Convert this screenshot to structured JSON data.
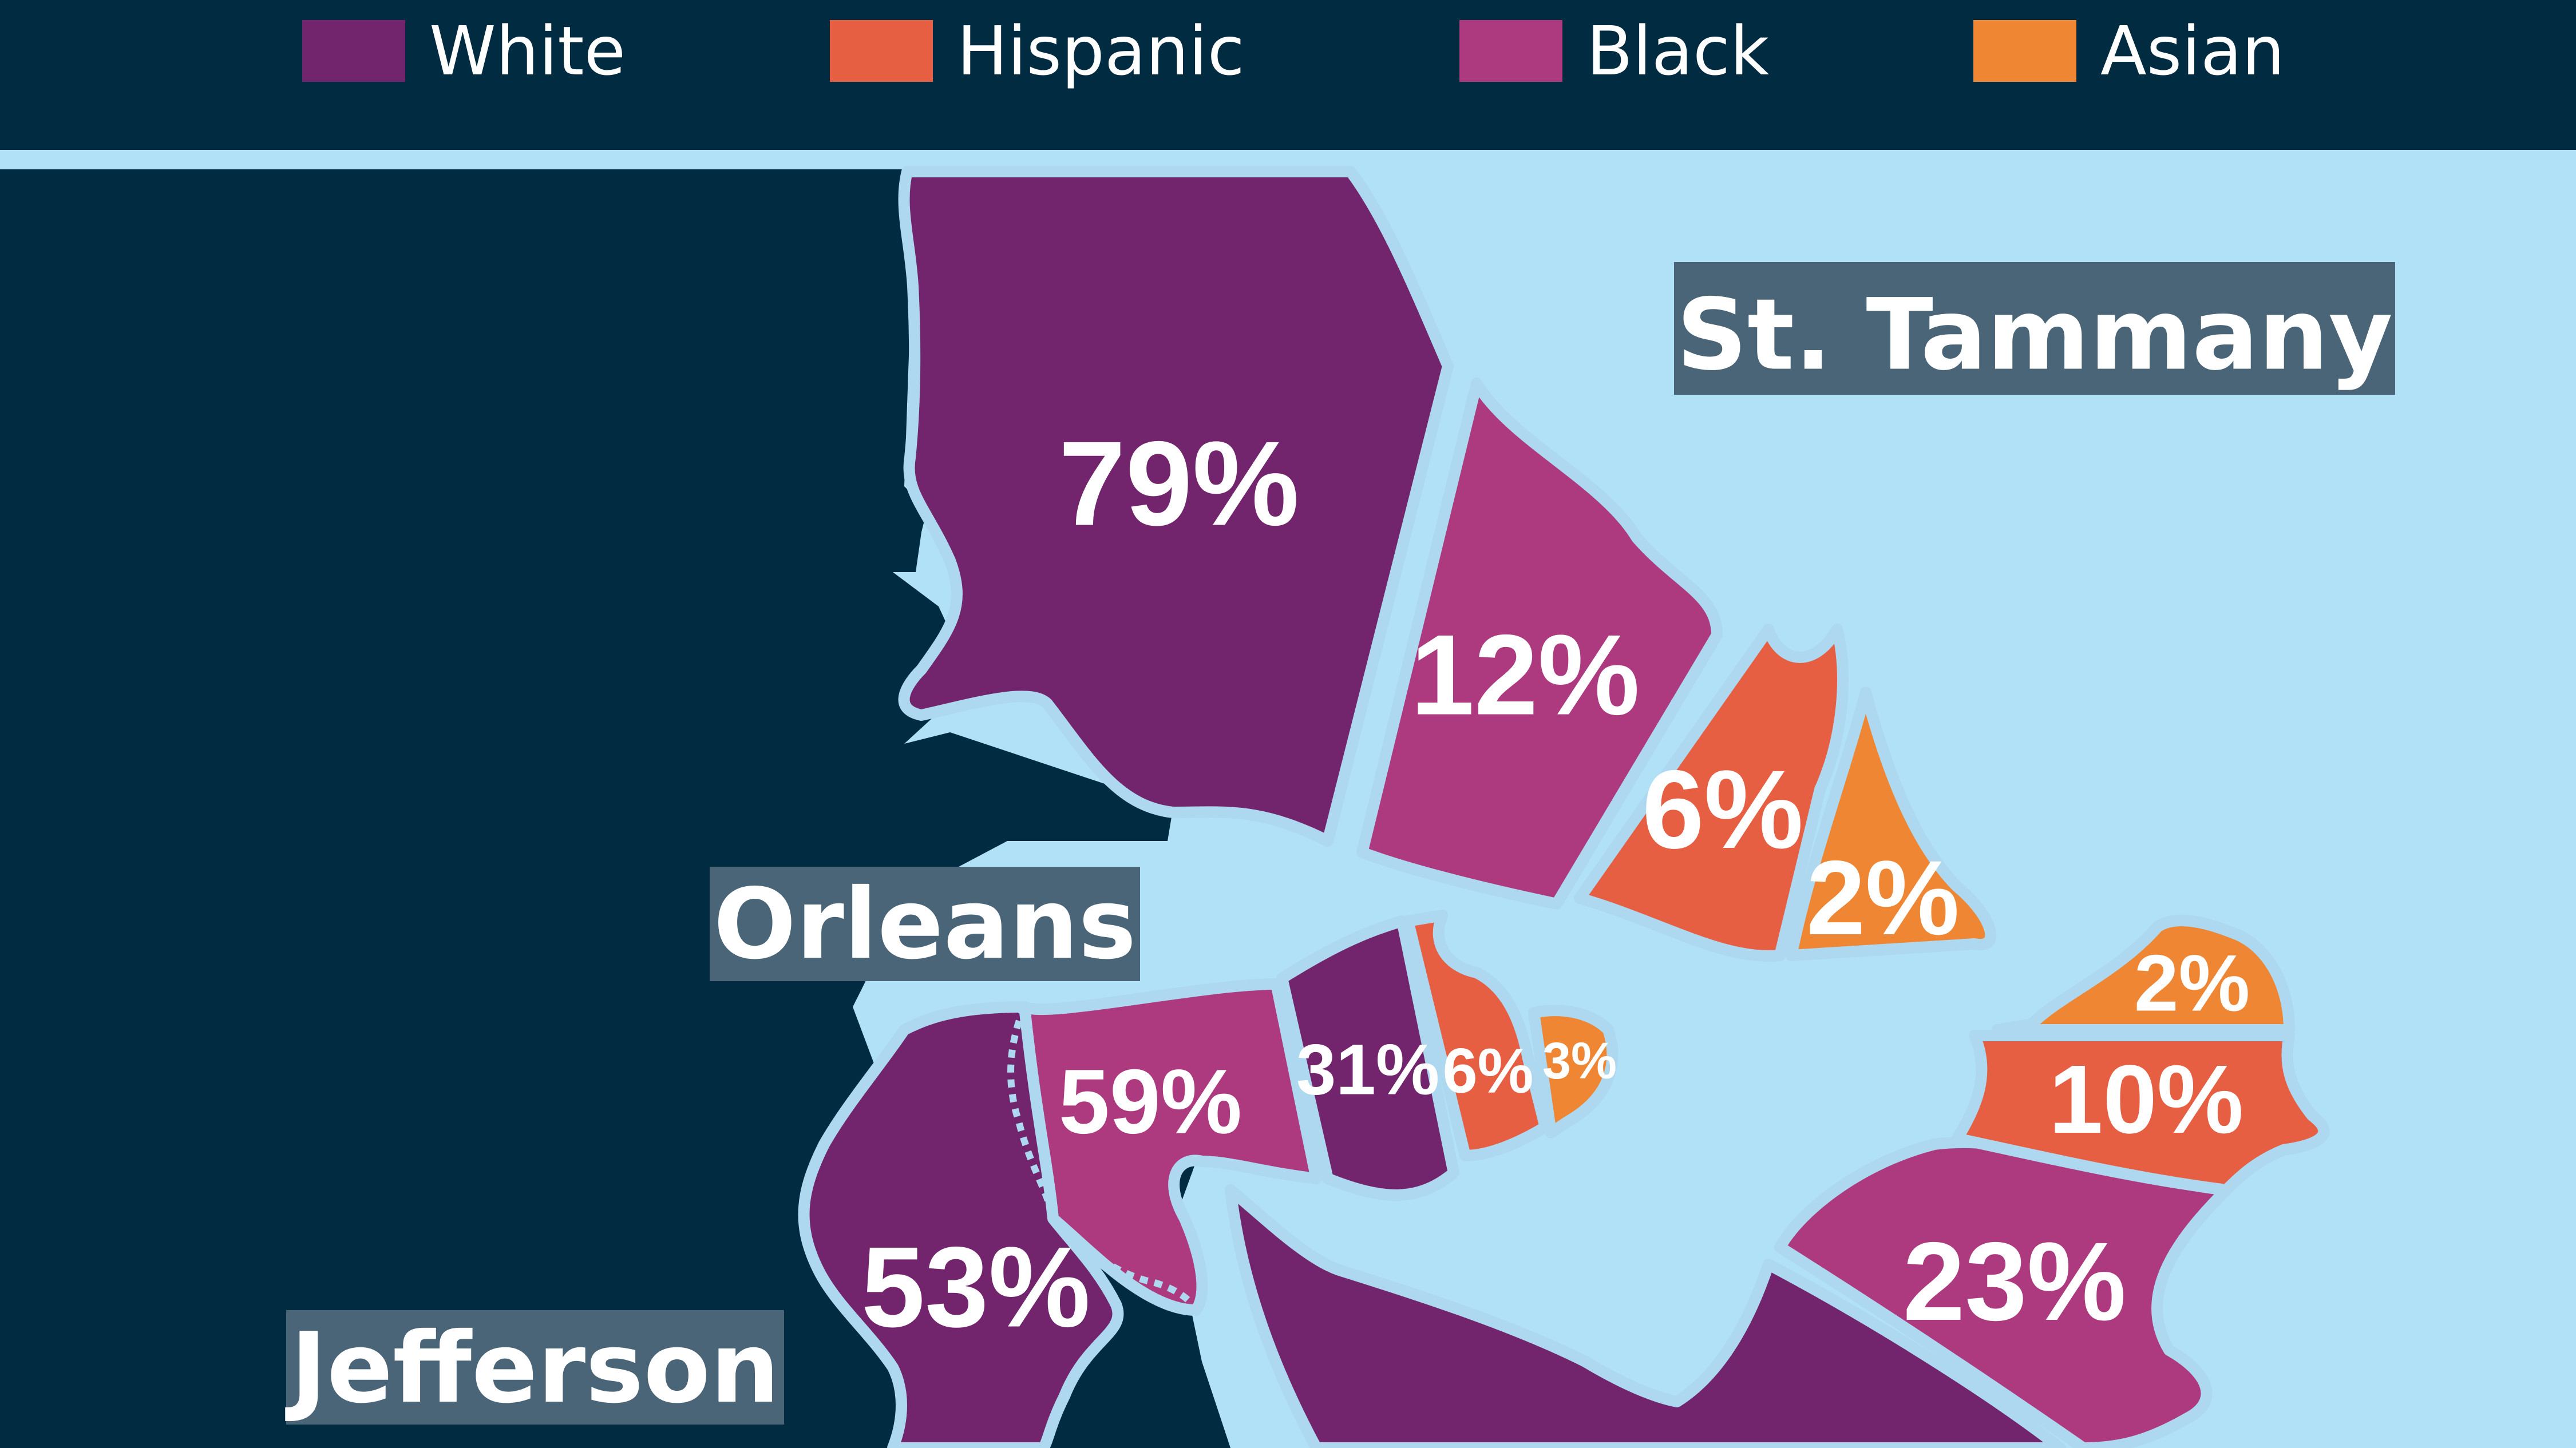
{
  "legend": [
    {
      "label": "White",
      "color": "#72256c"
    },
    {
      "label": "Hispanic",
      "color": "#e65f42"
    },
    {
      "label": "Black",
      "color": "#ad3a7e"
    },
    {
      "label": "Asian",
      "color": "#ee8633"
    }
  ],
  "colors": {
    "water": "#b0e1f6",
    "land": "#002b40",
    "label_box": "#4a6577"
  },
  "chart_data": {
    "type": "pie",
    "title": "",
    "categories": [
      "White",
      "Hispanic",
      "Black",
      "Asian"
    ],
    "parishes": [
      {
        "name": "St. Tammany",
        "values": {
          "White": 79,
          "Black": 12,
          "Hispanic": 6,
          "Asian": 2
        }
      },
      {
        "name": "Orleans",
        "values": {
          "Black": 59,
          "White": 31,
          "Hispanic": 6,
          "Asian": 3
        }
      },
      {
        "name": "Jefferson",
        "values": {
          "White": 53,
          "Black": 23,
          "Hispanic": 10,
          "Asian": 2
        }
      }
    ]
  }
}
